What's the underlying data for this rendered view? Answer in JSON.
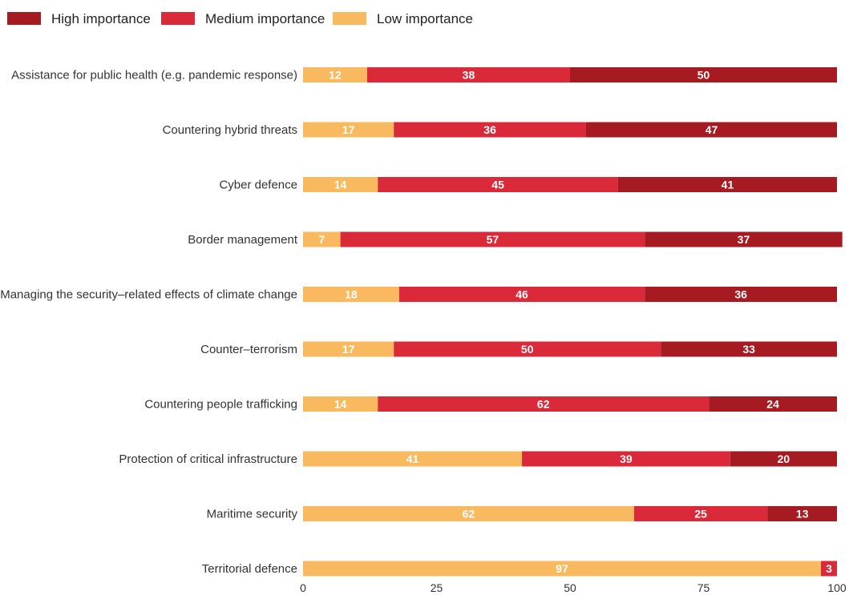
{
  "chart_data": {
    "type": "bar",
    "orientation": "horizontal",
    "stacked": true,
    "title": "",
    "xlabel": "",
    "ylabel": "",
    "xlim": [
      0,
      100
    ],
    "x_ticks": [
      0,
      25,
      50,
      75,
      100
    ],
    "grid": false,
    "legend_position": "top-left",
    "categories": [
      "Assistance for public health (e.g. pandemic response)",
      "Countering hybrid threats",
      "Cyber defence",
      "Border management",
      "Managing the security–related effects of climate change",
      "Counter–terrorism",
      "Countering people trafficking",
      "Protection of critical infrastructure",
      "Maritime security",
      "Territorial defence"
    ],
    "series": [
      {
        "name": "Low importance",
        "color": "#F9B95F",
        "values": [
          12,
          17,
          14,
          7,
          18,
          17,
          14,
          41,
          62,
          97
        ]
      },
      {
        "name": "Medium importance",
        "color": "#DA2A3A",
        "values": [
          38,
          36,
          45,
          57,
          46,
          50,
          62,
          39,
          25,
          3
        ]
      },
      {
        "name": "High importance",
        "color": "#A61A21",
        "values": [
          50,
          47,
          41,
          37,
          36,
          33,
          24,
          20,
          13,
          0
        ]
      }
    ],
    "legend_order": [
      "High importance",
      "Medium importance",
      "Low importance"
    ]
  }
}
